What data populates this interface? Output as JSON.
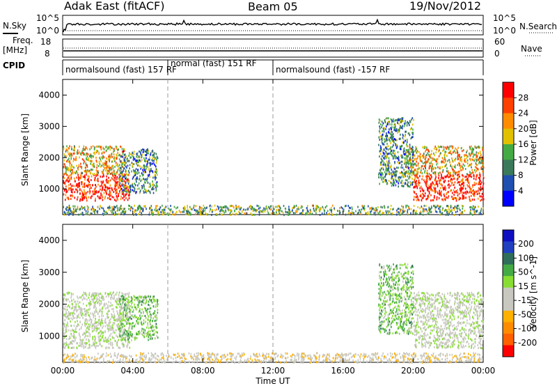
{
  "header": {
    "station": "Adak East (fitACF)",
    "beam": "Beam 05",
    "date": "19/Nov/2012"
  },
  "left_labels": {
    "nsky": "N.Sky",
    "freq_line1": "Freq.",
    "freq_line2": "[MHz]",
    "cpid": "CPID"
  },
  "right_labels": {
    "nsearch": "N.Search",
    "nave": "Nave"
  },
  "noise_panel": {
    "left_ticks": [
      "10^5",
      "10^0"
    ],
    "right_ticks": [
      "10^5",
      "10^0"
    ]
  },
  "freq_panel": {
    "left_ticks": [
      "18",
      "8"
    ],
    "right_ticks": [
      "60",
      "0"
    ]
  },
  "cpid_segments": [
    {
      "label": "normalsound (fast) 157 RF",
      "start_h": 0.0,
      "end_h": 6.0
    },
    {
      "label": "normal (fast) 151 RF",
      "start_h": 6.0,
      "end_h": 12.0
    },
    {
      "label": "normalsound (fast) -157 RF",
      "start_h": 12.0,
      "end_h": 24.0
    }
  ],
  "colors": {
    "power_scale": [
      "#0000ff",
      "#1f4fb0",
      "#3a7a5a",
      "#44aa44",
      "#e0c000",
      "#ff8c00",
      "#ff4000",
      "#ff0000"
    ],
    "velocity_scale": [
      "#ff0000",
      "#ff6000",
      "#ff8c00",
      "#ffb000",
      "#c8c8c0",
      "#c8c8c0",
      "#88dd33",
      "#44aa44",
      "#2f6e5a",
      "#2040c0",
      "#1010c0"
    ]
  },
  "chart_data": [
    {
      "type": "heatmap",
      "title": "Power",
      "x_unit": "hours UT",
      "xlim": [
        0,
        24
      ],
      "ylabel": "Slant Range [km]",
      "ylim": [
        180,
        4500
      ],
      "y_ticks": [
        1000,
        2000,
        3000,
        4000
      ],
      "x_ticks": [
        "00:00",
        "04:00",
        "08:00",
        "12:00",
        "16:00",
        "20:00",
        "00:00"
      ],
      "colorbar": {
        "label": "Power [dB]",
        "ticks": [
          "28",
          "24",
          "20",
          "16",
          "12",
          "8",
          "4"
        ],
        "range": [
          0,
          30
        ]
      },
      "regions": [
        {
          "t0": 0.0,
          "t1": 3.8,
          "r0": 650,
          "r1": 1500,
          "value": 27
        },
        {
          "t0": 0.0,
          "t1": 3.5,
          "r0": 1500,
          "r1": 2400,
          "value": 18
        },
        {
          "t0": 3.2,
          "t1": 5.4,
          "r0": 900,
          "r1": 2300,
          "value": 10
        },
        {
          "t0": 20.0,
          "t1": 24.0,
          "r0": 650,
          "r1": 1500,
          "value": 27
        },
        {
          "t0": 19.5,
          "t1": 24.0,
          "r0": 1500,
          "r1": 2400,
          "value": 18
        },
        {
          "t0": 18.0,
          "t1": 20.0,
          "r0": 1100,
          "r1": 3300,
          "value": 10
        },
        {
          "t0": 0.0,
          "t1": 24.0,
          "r0": 200,
          "r1": 500,
          "value": 12
        }
      ]
    },
    {
      "type": "heatmap",
      "title": "Velocity",
      "x_unit": "hours UT",
      "xlim": [
        0,
        24
      ],
      "xlabel": "Time UT",
      "ylabel": "Slant Range [km]",
      "ylim": [
        180,
        4500
      ],
      "y_ticks": [
        1000,
        2000,
        3000,
        4000
      ],
      "x_ticks": [
        "00:00",
        "04:00",
        "08:00",
        "12:00",
        "16:00",
        "20:00",
        "00:00"
      ],
      "colorbar": {
        "label": "Velocity [m s^-1]",
        "ticks": [
          "200",
          "100",
          "50",
          "15",
          "-15",
          "-50",
          "-100",
          "-200"
        ],
        "range": [
          -250,
          250
        ]
      },
      "regions": [
        {
          "t0": 0.0,
          "t1": 3.8,
          "r0": 650,
          "r1": 2400,
          "value": 0
        },
        {
          "t0": 3.2,
          "t1": 5.4,
          "r0": 900,
          "r1": 2300,
          "value": 60
        },
        {
          "t0": 20.0,
          "t1": 24.0,
          "r0": 650,
          "r1": 2400,
          "value": 0
        },
        {
          "t0": 18.0,
          "t1": 20.0,
          "r0": 1100,
          "r1": 3300,
          "value": 60
        },
        {
          "t0": 0.0,
          "t1": 24.0,
          "r0": 200,
          "r1": 500,
          "value": -40
        }
      ]
    }
  ]
}
